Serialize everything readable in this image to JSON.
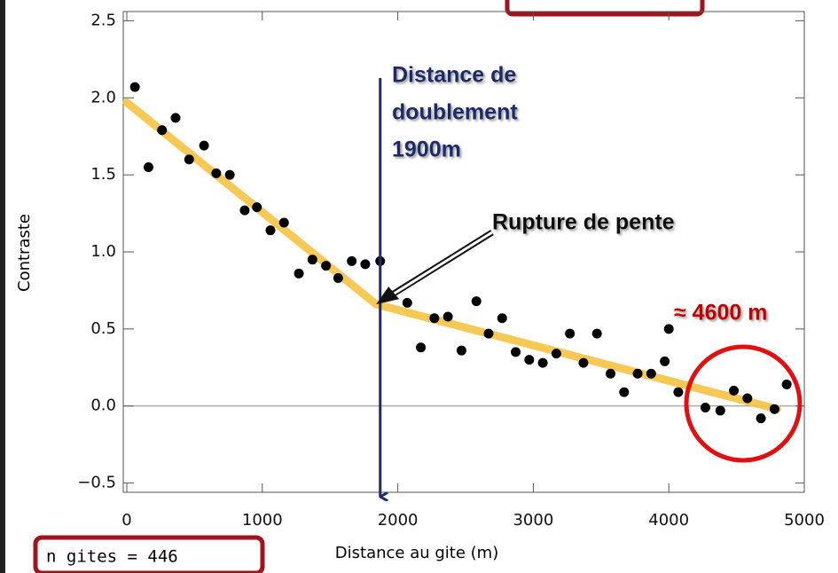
{
  "chart_data": {
    "type": "scatter",
    "x_label": "Distance au gite (m)",
    "y_label": "Contraste",
    "xlim": [
      0,
      5000
    ],
    "ylim": [
      -0.56,
      2.56
    ],
    "xticks": [
      0,
      1000,
      2000,
      3000,
      4000,
      5000
    ],
    "yticks": [
      {
        "value": -0.5,
        "label": "−0.5"
      },
      {
        "value": 0,
        "label": "0.0"
      },
      {
        "value": 0.5,
        "label": "0.5"
      },
      {
        "value": 1,
        "label": "1.0"
      },
      {
        "value": 1.5,
        "label": "1.5"
      },
      {
        "value": 2,
        "label": "2.0"
      },
      {
        "value": 2.5,
        "label": "2.5"
      }
    ],
    "color": "#000000",
    "x": [
      60,
      160,
      260,
      360,
      460,
      570,
      660,
      760,
      870,
      960,
      1060,
      1160,
      1270,
      1370,
      1470,
      1560,
      1660,
      1760,
      1870,
      2070,
      2170,
      2270,
      2370,
      2470,
      2580,
      2670,
      2770,
      2870,
      2970,
      3070,
      3170,
      3270,
      3370,
      3470,
      3570,
      3670,
      3770,
      3870,
      3970,
      4000,
      4070,
      4270,
      4380,
      4480,
      4580,
      4680,
      4780,
      4870
    ],
    "values": [
      2.07,
      1.55,
      1.79,
      1.87,
      1.6,
      1.69,
      1.51,
      1.5,
      1.27,
      1.29,
      1.14,
      1.19,
      0.86,
      0.95,
      0.91,
      0.83,
      0.94,
      0.92,
      0.94,
      0.67,
      0.38,
      0.57,
      0.58,
      0.36,
      0.68,
      0.47,
      0.57,
      0.35,
      0.3,
      0.28,
      0.34,
      0.47,
      0.28,
      0.47,
      0.21,
      0.09,
      0.21,
      0.21,
      0.29,
      0.5,
      0.09,
      -0.01,
      -0.03,
      0.1,
      0.05,
      -0.08,
      -0.02,
      0.14
    ],
    "fit_line": {
      "color": "#f5c242",
      "x": [
        0,
        1840,
        4800
      ],
      "values": [
        1.97,
        0.66,
        -0.02
      ]
    },
    "annotations": {
      "doubling_lines": [
        "Distance de",
        "doublement",
        "1900m"
      ],
      "doubling_x": 1870,
      "break_label": "Rupture de pente",
      "distance_label": "≈ 4600 m",
      "count_label": "n gites = 446"
    }
  }
}
